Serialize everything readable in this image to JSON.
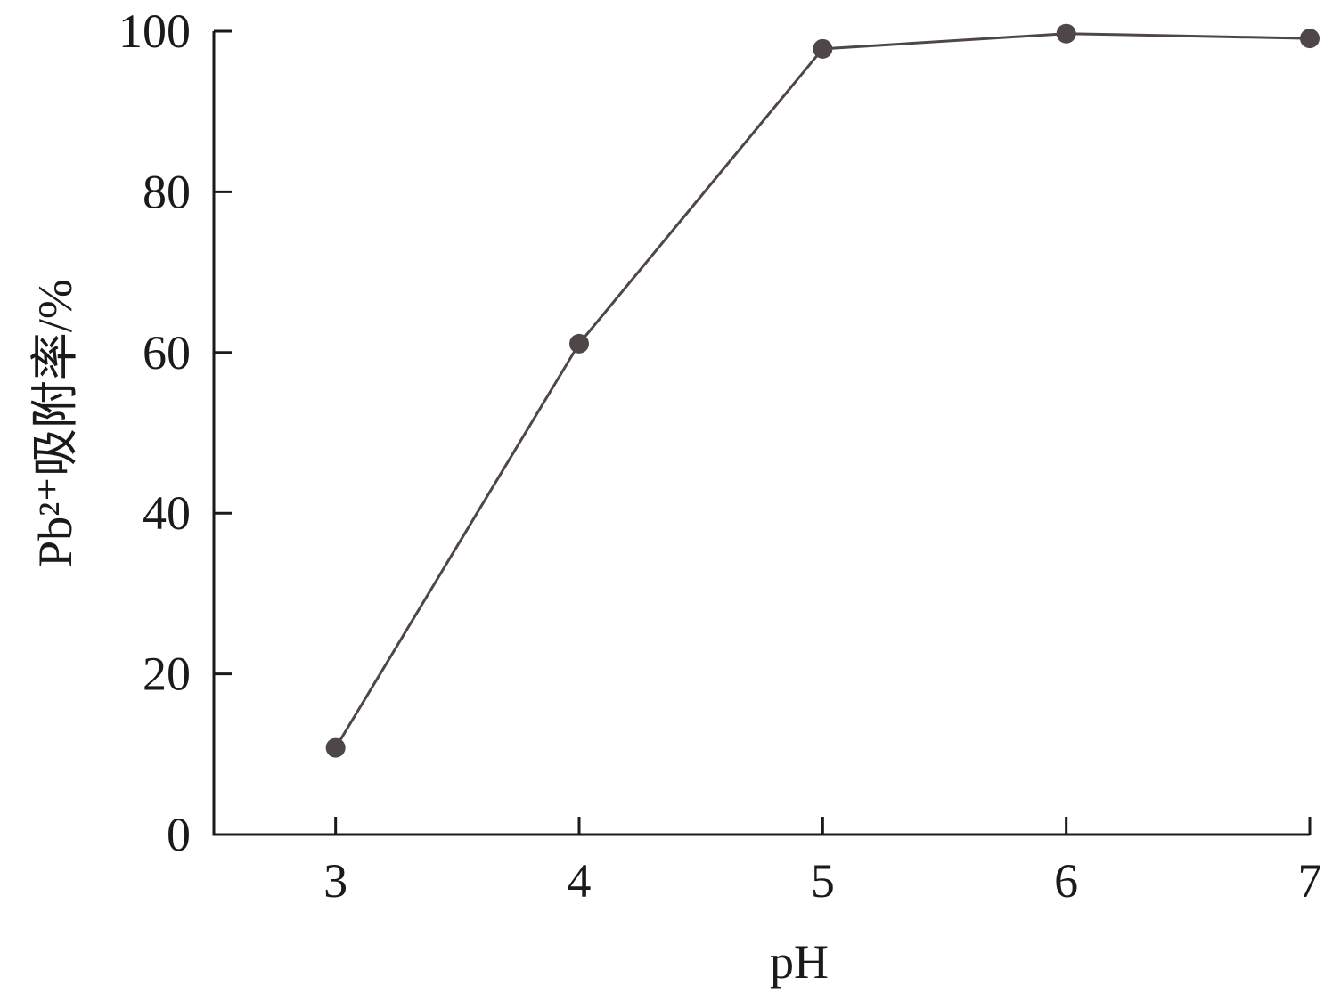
{
  "chart_data": {
    "type": "line",
    "x_label": "pH",
    "y_label": "Pb²⁺吸附率/%",
    "x": [
      3,
      4,
      5,
      6,
      7
    ],
    "series": [
      {
        "color": "#4f4747",
        "values": [
          10.8,
          61.1,
          97.8,
          99.7,
          99.1
        ]
      }
    ],
    "xlim": [
      2.5,
      7
    ],
    "xticks": [
      3,
      4,
      5,
      6,
      7
    ],
    "ylim": [
      0,
      100
    ],
    "yticks": [
      0,
      20,
      40,
      60,
      80,
      100
    ],
    "grid": false
  }
}
